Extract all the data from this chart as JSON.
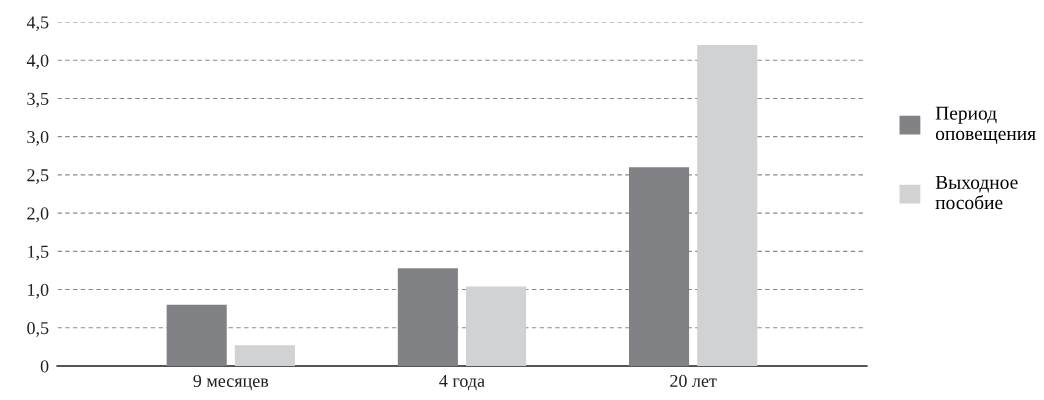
{
  "chart_data": {
    "type": "bar",
    "categories": [
      "9 месяцев",
      "4 года",
      "20 лет"
    ],
    "series": [
      {
        "name": "Период\nоповещения",
        "color": "#818286",
        "values": [
          0.8,
          1.28,
          2.6
        ]
      },
      {
        "name": "Выходное\nпособие",
        "color": "#d1d2d4",
        "values": [
          0.27,
          1.04,
          4.2
        ]
      }
    ],
    "ylim": [
      0,
      4.5
    ],
    "yticks": [
      0,
      {
        "value": 0.5,
        "label": "0,5"
      },
      {
        "value": 1,
        "label": "1,0"
      },
      {
        "value": 1.5,
        "label": "1,5"
      },
      {
        "value": 2,
        "label": "2,0"
      },
      {
        "value": 2.5,
        "label": "2,5"
      },
      {
        "value": 3,
        "label": "3,0"
      },
      {
        "value": 3.5,
        "label": "3,5"
      },
      {
        "value": 4,
        "label": "4,0"
      },
      {
        "value": 4.5,
        "label": "4,5"
      }
    ],
    "grid": "y",
    "legend": "right"
  }
}
